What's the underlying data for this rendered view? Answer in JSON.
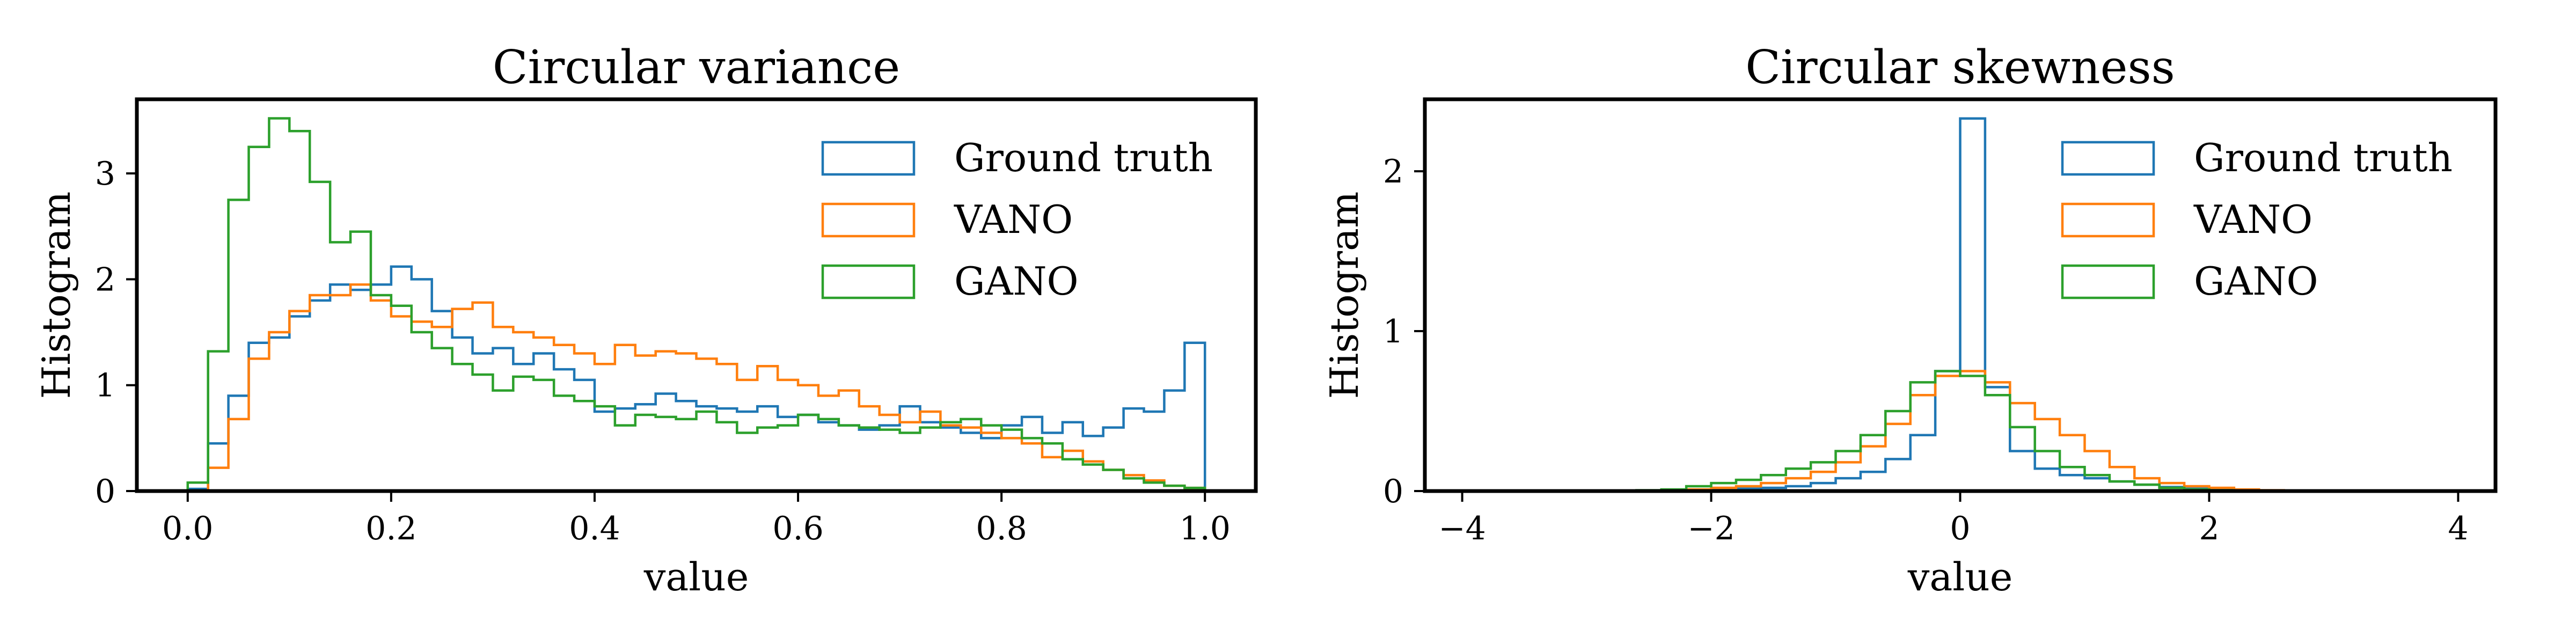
{
  "chart_data": [
    {
      "type": "histogram",
      "title": "Circular variance",
      "xlabel": "value",
      "ylabel": "Histogram",
      "xlim": [
        -0.05,
        1.05
      ],
      "ylim": [
        0,
        3.7
      ],
      "xticks": [
        0.0,
        0.2,
        0.4,
        0.6,
        0.8,
        1.0
      ],
      "xtick_labels": [
        "0.0",
        "0.2",
        "0.4",
        "0.6",
        "0.8",
        "1.0"
      ],
      "yticks": [
        0,
        1,
        2,
        3
      ],
      "ytick_labels": [
        "0",
        "1",
        "2",
        "3"
      ],
      "legend_position": "top-right",
      "bin_edges": [
        0.0,
        0.02,
        0.04,
        0.06,
        0.08,
        0.1,
        0.12,
        0.14,
        0.16,
        0.18,
        0.2,
        0.22,
        0.24,
        0.26,
        0.28,
        0.3,
        0.32,
        0.34,
        0.36,
        0.38,
        0.4,
        0.42,
        0.44,
        0.46,
        0.48,
        0.5,
        0.52,
        0.54,
        0.56,
        0.58,
        0.6,
        0.62,
        0.64,
        0.66,
        0.68,
        0.7,
        0.72,
        0.74,
        0.76,
        0.78,
        0.8,
        0.82,
        0.84,
        0.86,
        0.88,
        0.9,
        0.92,
        0.94,
        0.96,
        0.98,
        1.0
      ],
      "series": [
        {
          "name": "Ground truth",
          "color": "#1f77b4",
          "values": [
            0.02,
            0.45,
            0.9,
            1.4,
            1.45,
            1.65,
            1.8,
            1.95,
            1.9,
            1.95,
            2.12,
            2.0,
            1.7,
            1.45,
            1.3,
            1.35,
            1.2,
            1.3,
            1.15,
            1.05,
            0.75,
            0.78,
            0.82,
            0.92,
            0.85,
            0.8,
            0.78,
            0.75,
            0.8,
            0.7,
            0.72,
            0.65,
            0.62,
            0.58,
            0.62,
            0.8,
            0.65,
            0.6,
            0.55,
            0.5,
            0.62,
            0.7,
            0.55,
            0.65,
            0.52,
            0.6,
            0.78,
            0.75,
            0.95,
            1.4
          ]
        },
        {
          "name": "VANO",
          "color": "#ff7f0e",
          "values": [
            0.0,
            0.22,
            0.68,
            1.25,
            1.5,
            1.7,
            1.85,
            1.85,
            1.95,
            1.8,
            1.65,
            1.6,
            1.55,
            1.72,
            1.78,
            1.55,
            1.5,
            1.45,
            1.38,
            1.3,
            1.2,
            1.38,
            1.28,
            1.32,
            1.3,
            1.25,
            1.2,
            1.05,
            1.18,
            1.05,
            1.0,
            0.9,
            0.95,
            0.8,
            0.72,
            0.65,
            0.75,
            0.62,
            0.6,
            0.55,
            0.5,
            0.45,
            0.32,
            0.38,
            0.28,
            0.2,
            0.15,
            0.1,
            0.05,
            0.03
          ]
        },
        {
          "name": "GANO",
          "color": "#2ca02c",
          "values": [
            0.08,
            1.32,
            2.75,
            3.25,
            3.52,
            3.4,
            2.92,
            2.35,
            2.45,
            1.85,
            1.75,
            1.5,
            1.35,
            1.2,
            1.1,
            0.95,
            1.08,
            1.05,
            0.9,
            0.85,
            0.8,
            0.62,
            0.72,
            0.7,
            0.68,
            0.75,
            0.65,
            0.55,
            0.6,
            0.62,
            0.72,
            0.68,
            0.62,
            0.6,
            0.58,
            0.55,
            0.6,
            0.65,
            0.68,
            0.62,
            0.58,
            0.5,
            0.45,
            0.3,
            0.25,
            0.2,
            0.12,
            0.08,
            0.05,
            0.03
          ]
        }
      ]
    },
    {
      "type": "histogram",
      "title": "Circular skewness",
      "xlabel": "value",
      "ylabel": "Histogram",
      "xlim": [
        -4.3,
        4.3
      ],
      "ylim": [
        0,
        2.45
      ],
      "xticks": [
        -4,
        -2,
        0,
        2,
        4
      ],
      "xtick_labels": [
        "−4",
        "−2",
        "0",
        "2",
        "4"
      ],
      "yticks": [
        0,
        1,
        2
      ],
      "ytick_labels": [
        "0",
        "1",
        "2"
      ],
      "legend_position": "top-right",
      "bin_edges": [
        -2.6,
        -2.4,
        -2.2,
        -2.0,
        -1.8,
        -1.6,
        -1.4,
        -1.2,
        -1.0,
        -0.8,
        -0.6,
        -0.4,
        -0.2,
        0.0,
        0.2,
        0.4,
        0.6,
        0.8,
        1.0,
        1.2,
        1.4,
        1.6,
        1.8,
        2.0,
        2.2,
        2.4,
        2.6
      ],
      "series": [
        {
          "name": "Ground truth",
          "color": "#1f77b4",
          "values": [
            0.0,
            0.003,
            0.005,
            0.01,
            0.015,
            0.02,
            0.03,
            0.05,
            0.08,
            0.12,
            0.2,
            0.35,
            0.75,
            2.33,
            0.65,
            0.25,
            0.14,
            0.1,
            0.08,
            0.06,
            0.04,
            0.025,
            0.015,
            0.008,
            0.004,
            0.002
          ]
        },
        {
          "name": "VANO",
          "color": "#ff7f0e",
          "values": [
            0.0,
            0.005,
            0.01,
            0.02,
            0.03,
            0.05,
            0.08,
            0.12,
            0.18,
            0.28,
            0.42,
            0.6,
            0.72,
            0.75,
            0.68,
            0.55,
            0.45,
            0.35,
            0.25,
            0.15,
            0.08,
            0.05,
            0.03,
            0.02,
            0.01,
            0.005
          ]
        },
        {
          "name": "GANO",
          "color": "#2ca02c",
          "values": [
            0.005,
            0.01,
            0.03,
            0.05,
            0.07,
            0.1,
            0.14,
            0.18,
            0.25,
            0.35,
            0.5,
            0.68,
            0.75,
            0.72,
            0.6,
            0.4,
            0.25,
            0.15,
            0.1,
            0.06,
            0.04,
            0.02,
            0.01,
            0.005,
            0.003,
            0.001
          ]
        }
      ]
    }
  ]
}
